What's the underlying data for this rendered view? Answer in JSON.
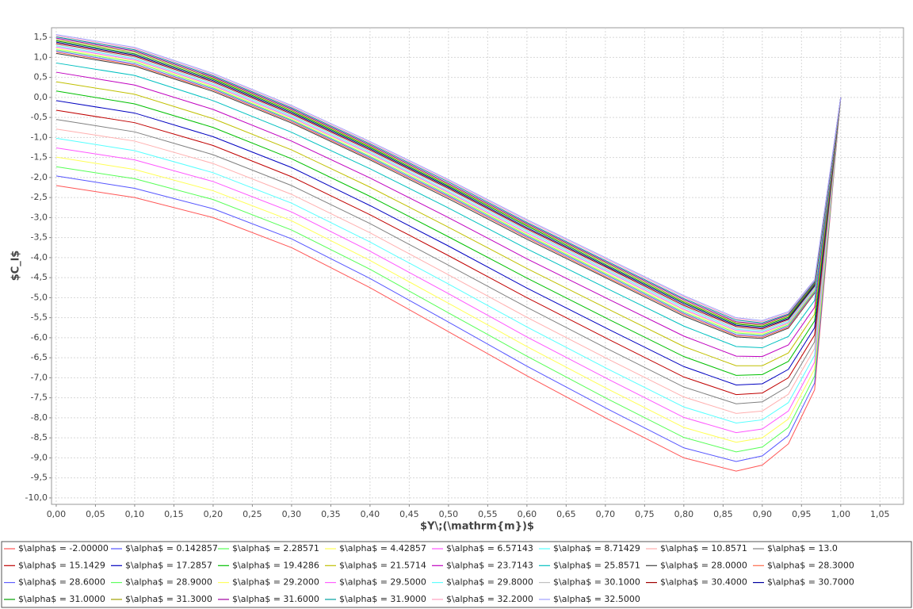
{
  "chart_data": {
    "type": "line",
    "x_label": "$Y\\;(\\mathrm{m})$",
    "y_label": "$C_l$",
    "x": [
      0,
      0.1,
      0.2,
      0.3,
      0.4,
      0.5,
      0.6,
      0.7,
      0.8,
      0.8667,
      0.9,
      0.9333,
      0.9667,
      1.0
    ],
    "xlim": [
      -0.006,
      1.08
    ],
    "ylim": [
      -10.16,
      1.74
    ],
    "grid": true,
    "legend": "bottom",
    "xticks": [
      {
        "value": 0,
        "label": "0,00"
      },
      {
        "value": 0.05,
        "label": "0,05"
      },
      {
        "value": 0.1,
        "label": "0,10"
      },
      {
        "value": 0.15,
        "label": "0,15"
      },
      {
        "value": 0.2,
        "label": "0,20"
      },
      {
        "value": 0.25,
        "label": "0,25"
      },
      {
        "value": 0.3,
        "label": "0,30"
      },
      {
        "value": 0.35,
        "label": "0,35"
      },
      {
        "value": 0.4,
        "label": "0,40"
      },
      {
        "value": 0.45,
        "label": "0,45"
      },
      {
        "value": 0.5,
        "label": "0,50"
      },
      {
        "value": 0.55,
        "label": "0,55"
      },
      {
        "value": 0.6,
        "label": "0,60"
      },
      {
        "value": 0.65,
        "label": "0,65"
      },
      {
        "value": 0.7,
        "label": "0,70"
      },
      {
        "value": 0.75,
        "label": "0,75"
      },
      {
        "value": 0.8,
        "label": "0,80"
      },
      {
        "value": 0.85,
        "label": "0,85"
      },
      {
        "value": 0.9,
        "label": "0,90"
      },
      {
        "value": 0.95,
        "label": "0,95"
      },
      {
        "value": 1.0,
        "label": "1,00"
      },
      {
        "value": 1.05,
        "label": "1,05"
      }
    ],
    "yticks": [
      {
        "value": 1.5,
        "label": "1,5"
      },
      {
        "value": 1,
        "label": "1,0"
      },
      {
        "value": 0.5,
        "label": "0,5"
      },
      {
        "value": 0,
        "label": "0,0"
      },
      {
        "value": -0.5,
        "label": "-0,5"
      },
      {
        "value": -1,
        "label": "-1,0"
      },
      {
        "value": -1.5,
        "label": "-1,5"
      },
      {
        "value": -2,
        "label": "-2,0"
      },
      {
        "value": -2.5,
        "label": "-2,5"
      },
      {
        "value": -3,
        "label": "-3,0"
      },
      {
        "value": -3.5,
        "label": "-3,5"
      },
      {
        "value": -4,
        "label": "-4,0"
      },
      {
        "value": -4.5,
        "label": "-4,5"
      },
      {
        "value": -5,
        "label": "-5,0"
      },
      {
        "value": -5.5,
        "label": "-5,5"
      },
      {
        "value": -6,
        "label": "-6,0"
      },
      {
        "value": -6.5,
        "label": "-6,5"
      },
      {
        "value": -7,
        "label": "-7,0"
      },
      {
        "value": -7.5,
        "label": "-7,5"
      },
      {
        "value": -8,
        "label": "-8,0"
      },
      {
        "value": -8.5,
        "label": "-8,5"
      },
      {
        "value": -9,
        "label": "-9,0"
      },
      {
        "value": -9.5,
        "label": "-9,5"
      },
      {
        "value": -10,
        "label": "-10,0"
      }
    ],
    "series": [
      {
        "name": "$\\alpha$ = -2.00000",
        "color": "#ff5555",
        "values": [
          -2.2,
          -2.5,
          -3,
          -3.75,
          -4.75,
          -5.85,
          -6.95,
          -8,
          -9,
          -9.33,
          -9.18,
          -8.65,
          -7.3,
          0
        ]
      },
      {
        "name": "$\\alpha$ = 0.142857",
        "color": "#5555ff",
        "values": [
          -1.96,
          -2.27,
          -2.78,
          -3.53,
          -4.52,
          -5.61,
          -6.71,
          -7.75,
          -8.75,
          -9.09,
          -8.95,
          -8.44,
          -7.13,
          0
        ]
      },
      {
        "name": "$\\alpha$ = 2.28571",
        "color": "#55ff55",
        "values": [
          -1.73,
          -2.03,
          -2.55,
          -3.31,
          -4.29,
          -5.38,
          -6.46,
          -7.5,
          -8.49,
          -8.85,
          -8.73,
          -8.24,
          -6.96,
          0
        ]
      },
      {
        "name": "$\\alpha$ = 4.42857",
        "color": "#ffff55",
        "values": [
          -1.49,
          -1.8,
          -2.33,
          -3.08,
          -4.07,
          -5.14,
          -6.22,
          -7.25,
          -8.24,
          -8.61,
          -8.5,
          -8.03,
          -6.78,
          0
        ]
      },
      {
        "name": "$\\alpha$ = 6.57143",
        "color": "#ff55ff",
        "values": [
          -1.26,
          -1.56,
          -2.1,
          -2.86,
          -3.84,
          -4.9,
          -5.98,
          -7,
          -7.99,
          -8.37,
          -8.28,
          -7.83,
          -6.61,
          0
        ]
      },
      {
        "name": "$\\alpha$ = 8.71429",
        "color": "#55ffff",
        "values": [
          -1.02,
          -1.33,
          -1.88,
          -2.64,
          -3.61,
          -4.66,
          -5.73,
          -6.75,
          -7.73,
          -8.13,
          -8.05,
          -7.62,
          -6.44,
          0
        ]
      },
      {
        "name": "$\\alpha$ = 10.8571",
        "color": "#ffafaf",
        "values": [
          -0.79,
          -1.09,
          -1.65,
          -2.42,
          -3.38,
          -4.43,
          -5.49,
          -6.5,
          -7.48,
          -7.89,
          -7.83,
          -7.41,
          -6.27,
          0
        ]
      },
      {
        "name": "$\\alpha$ = 13.0",
        "color": "#808080",
        "values": [
          -0.55,
          -0.86,
          -1.43,
          -2.2,
          -3.15,
          -4.19,
          -5.24,
          -6.25,
          -7.23,
          -7.65,
          -7.6,
          -7.21,
          -6.1,
          0
        ]
      },
      {
        "name": "$\\alpha$ = 15.1429",
        "color": "#c00000",
        "values": [
          -0.32,
          -0.63,
          -1.2,
          -1.98,
          -2.93,
          -3.95,
          -5,
          -6,
          -6.98,
          -7.42,
          -7.38,
          -7,
          -5.93,
          0
        ]
      },
      {
        "name": "$\\alpha$ = 17.2857",
        "color": "#0000c0",
        "values": [
          -0.08,
          -0.39,
          -0.98,
          -1.75,
          -2.7,
          -3.71,
          -4.76,
          -5.75,
          -6.72,
          -7.18,
          -7.15,
          -6.79,
          -5.75,
          0
        ]
      },
      {
        "name": "$\\alpha$ = 19.4286",
        "color": "#00c000",
        "values": [
          0.16,
          -0.16,
          -0.75,
          -1.53,
          -2.47,
          -3.48,
          -4.51,
          -5.5,
          -6.47,
          -6.94,
          -6.92,
          -6.59,
          -5.58,
          0
        ]
      },
      {
        "name": "$\\alpha$ = 21.5714",
        "color": "#c0c000",
        "values": [
          0.39,
          0.08,
          -0.53,
          -1.31,
          -2.24,
          -3.24,
          -4.27,
          -5.25,
          -6.22,
          -6.7,
          -6.7,
          -6.38,
          -5.41,
          0
        ]
      },
      {
        "name": "$\\alpha$ = 23.7143",
        "color": "#c000c0",
        "values": [
          0.63,
          0.31,
          -0.3,
          -1.09,
          -2.01,
          -3,
          -4.03,
          -5,
          -5.96,
          -6.46,
          -6.47,
          -6.18,
          -5.24,
          0
        ]
      },
      {
        "name": "$\\alpha$ = 25.8571",
        "color": "#00c0c0",
        "values": [
          0.86,
          0.55,
          -0.08,
          -0.87,
          -1.78,
          -2.76,
          -3.78,
          -4.75,
          -5.71,
          -6.22,
          -6.25,
          -5.97,
          -5.07,
          0
        ]
      },
      {
        "name": "$\\alpha$ = 28.0000",
        "color": "#404040",
        "values": [
          1.1,
          0.78,
          0.15,
          -0.64,
          -1.56,
          -2.53,
          -3.54,
          -4.5,
          -5.46,
          -5.98,
          -6.02,
          -5.76,
          -4.89,
          0
        ]
      },
      {
        "name": "$\\alpha$ = 28.3000",
        "color": "#ff6a4a",
        "values": [
          1.13,
          0.81,
          0.18,
          -0.61,
          -1.53,
          -2.49,
          -3.5,
          -4.47,
          -5.42,
          -5.95,
          -5.99,
          -5.74,
          -4.87,
          0
        ]
      },
      {
        "name": "$\\alpha$ = 28.6000",
        "color": "#6060ff",
        "values": [
          1.16,
          0.84,
          0.21,
          -0.58,
          -1.5,
          -2.46,
          -3.47,
          -4.43,
          -5.39,
          -5.92,
          -5.96,
          -5.71,
          -4.85,
          0
        ]
      },
      {
        "name": "$\\alpha$ = 28.9000",
        "color": "#60ff60",
        "values": [
          1.19,
          0.88,
          0.24,
          -0.56,
          -1.47,
          -2.43,
          -3.44,
          -4.4,
          -5.36,
          -5.88,
          -5.93,
          -5.68,
          -4.83,
          0
        ]
      },
      {
        "name": "$\\alpha$ = 29.2000",
        "color": "#ffff60",
        "values": [
          1.22,
          0.91,
          0.27,
          -0.53,
          -1.43,
          -2.4,
          -3.41,
          -4.37,
          -5.32,
          -5.85,
          -5.9,
          -5.65,
          -4.8,
          0
        ]
      },
      {
        "name": "$\\alpha$ = 29.5000",
        "color": "#ff60ff",
        "values": [
          1.26,
          0.94,
          0.3,
          -0.5,
          -1.4,
          -2.37,
          -3.38,
          -4.33,
          -5.29,
          -5.82,
          -5.87,
          -5.63,
          -4.78,
          0
        ]
      },
      {
        "name": "$\\alpha$ = 29.8000",
        "color": "#60ffff",
        "values": [
          1.29,
          0.97,
          0.33,
          -0.47,
          -1.37,
          -2.34,
          -3.34,
          -4.3,
          -5.25,
          -5.79,
          -5.84,
          -5.6,
          -4.76,
          0
        ]
      },
      {
        "name": "$\\alpha$ = 30.1000",
        "color": "#c0c0c0",
        "values": [
          1.32,
          1.0,
          0.36,
          -0.44,
          -1.34,
          -2.3,
          -3.31,
          -4.27,
          -5.22,
          -5.76,
          -5.81,
          -5.57,
          -4.73,
          0
        ]
      },
      {
        "name": "$\\alpha$ = 30.4000",
        "color": "#a00000",
        "values": [
          1.35,
          1.03,
          0.39,
          -0.41,
          -1.31,
          -2.27,
          -3.28,
          -4.23,
          -5.19,
          -5.72,
          -5.78,
          -5.54,
          -4.71,
          0
        ]
      },
      {
        "name": "$\\alpha$ = 30.7000",
        "color": "#0000a0",
        "values": [
          1.38,
          1.06,
          0.42,
          -0.38,
          -1.28,
          -2.24,
          -3.25,
          -4.2,
          -5.15,
          -5.69,
          -5.75,
          -5.52,
          -4.69,
          0
        ]
      },
      {
        "name": "$\\alpha$ = 31.0000",
        "color": "#00a000",
        "values": [
          1.41,
          1.09,
          0.45,
          -0.35,
          -1.25,
          -2.21,
          -3.21,
          -4.17,
          -5.12,
          -5.66,
          -5.72,
          -5.49,
          -4.66,
          0
        ]
      },
      {
        "name": "$\\alpha$ = 31.3000",
        "color": "#a0a000",
        "values": [
          1.44,
          1.13,
          0.48,
          -0.32,
          -1.22,
          -2.18,
          -3.18,
          -4.13,
          -5.09,
          -5.63,
          -5.69,
          -5.46,
          -4.64,
          0
        ]
      },
      {
        "name": "$\\alpha$ = 31.6000",
        "color": "#a000a0",
        "values": [
          1.48,
          1.16,
          0.51,
          -0.29,
          -1.19,
          -2.15,
          -3.15,
          -4.1,
          -5.05,
          -5.6,
          -5.66,
          -5.43,
          -4.62,
          0
        ]
      },
      {
        "name": "$\\alpha$ = 31.9000",
        "color": "#00a0a0",
        "values": [
          1.51,
          1.19,
          0.54,
          -0.26,
          -1.16,
          -2.11,
          -3.12,
          -4.07,
          -5.02,
          -5.56,
          -5.63,
          -5.41,
          -4.6,
          0
        ]
      },
      {
        "name": "$\\alpha$ = 32.2000",
        "color": "#ffa0c0",
        "values": [
          1.54,
          1.22,
          0.57,
          -0.23,
          -1.13,
          -2.08,
          -3.08,
          -4.03,
          -4.98,
          -5.53,
          -5.6,
          -5.38,
          -4.57,
          0
        ]
      },
      {
        "name": "$\\alpha$ = 32.5000",
        "color": "#a0a0ff",
        "values": [
          1.57,
          1.25,
          0.6,
          -0.2,
          -1.1,
          -2.05,
          -3.05,
          -4,
          -4.95,
          -5.5,
          -5.57,
          -5.35,
          -4.55,
          0
        ]
      }
    ]
  }
}
